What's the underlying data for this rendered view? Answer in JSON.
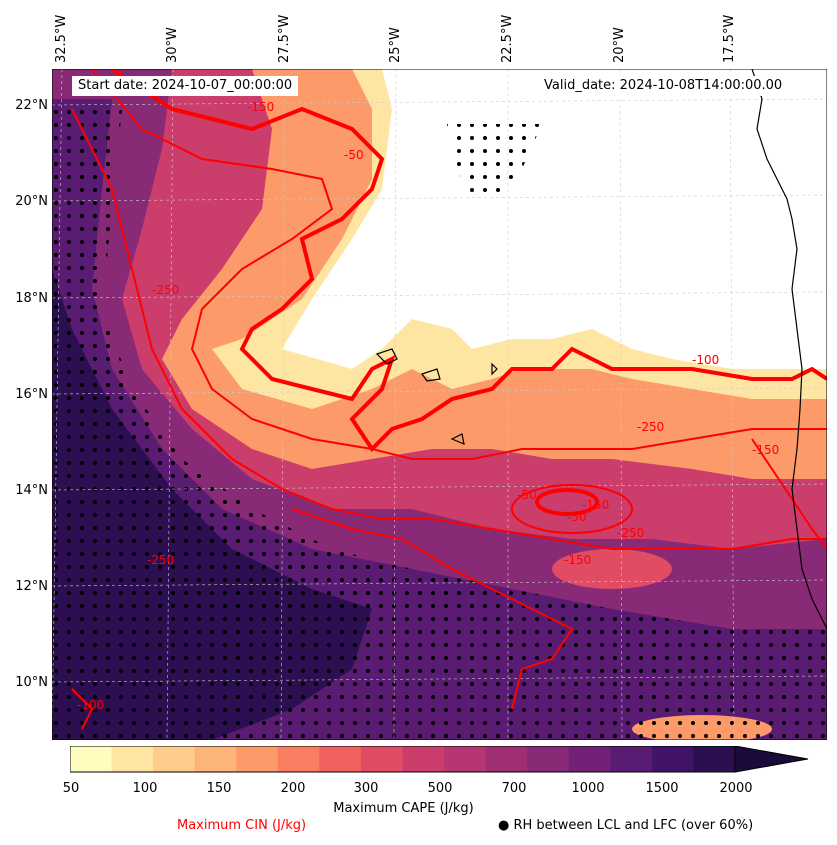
{
  "header": {
    "start_date": "Start date: 2024-10-07_00:00:00",
    "valid_date": "Valid_date: 2024-10-08T14:00:00.00"
  },
  "map": {
    "longitude_labels": [
      "32.5°W",
      "30°W",
      "27.5°W",
      "25°W",
      "22.5°W",
      "20°W",
      "17.5°W"
    ],
    "latitude_labels": [
      "22°N",
      "20°N",
      "18°N",
      "16°N",
      "14°N",
      "12°N",
      "10°N"
    ],
    "cin_contour_labels": [
      "-150",
      "-50",
      "-250",
      "-100",
      "-250",
      "-150",
      "-50",
      "-250",
      "-150",
      "-250",
      "-150",
      "-100",
      "-50"
    ]
  },
  "colorbar": {
    "label": "Maximum CAPE (J/kg)",
    "tick_labels": [
      "50",
      "100",
      "150",
      "200",
      "300",
      "500",
      "700",
      "1000",
      "1500",
      "2000"
    ],
    "colors": [
      "#fffcbf",
      "#fee6a2",
      "#fecd8b",
      "#fdb478",
      "#fc9a6a",
      "#f97e61",
      "#f1625f",
      "#e14b64",
      "#cb3e6c",
      "#b53670",
      "#9e2f73",
      "#882a76",
      "#712277",
      "#5a1b73",
      "#41146a",
      "#2b0f51",
      "#1a0b3b"
    ]
  },
  "legend": {
    "cin_label": "Maximum CIN (J/kg)",
    "rh_label": "RH between LCL and LFC (over 60%)"
  }
}
